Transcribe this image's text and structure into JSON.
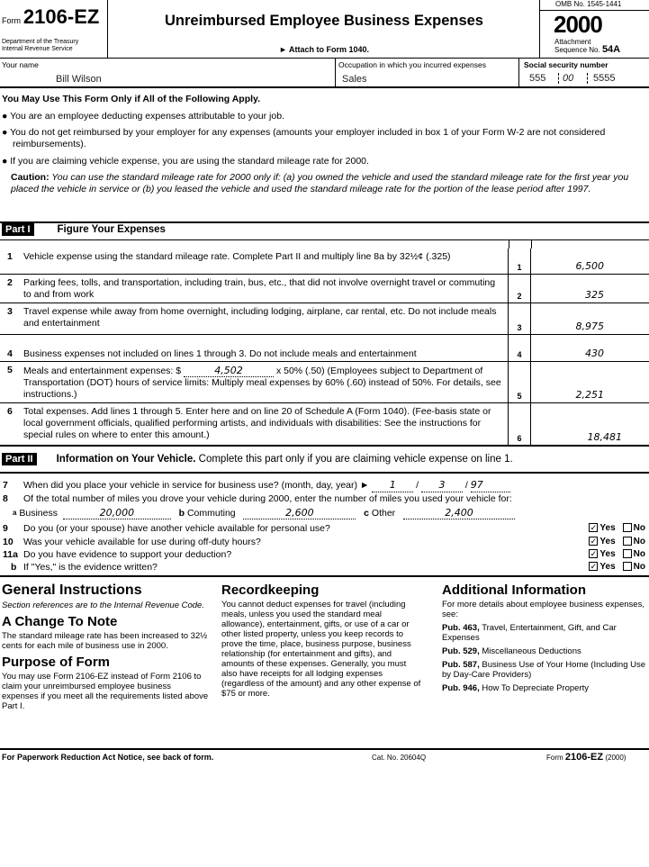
{
  "header": {
    "form_word": "Form",
    "form_number": "2106-EZ",
    "dept1": "Department of the Treasury",
    "dept2": "Internal Revenue Service",
    "title": "Unreimbursed Employee Business Expenses",
    "attach": "► Attach to Form 1040.",
    "omb": "OMB No. 1545-1441",
    "year": "2000",
    "attachment": "Attachment",
    "sequence": "Sequence No.",
    "sequence_no": "54A"
  },
  "taxpayer": {
    "name_label": "Your name",
    "name": "Bill Wilson",
    "occupation_label": "Occupation in which you incurred expenses",
    "occupation": "Sales",
    "ssn_label": "Social security number",
    "ssn": [
      "555",
      "00",
      "5555"
    ]
  },
  "eligibility": {
    "heading": "You May Use This Form Only if All of the Following Apply.",
    "bullets": [
      "You are an employee deducting expenses attributable to your job.",
      "You do not get reimbursed by your employer for any expenses (amounts your employer included in box 1 of your Form W-2 are not considered reimbursements).",
      "If you are claiming vehicle expense, you are using the standard mileage rate for 2000."
    ],
    "caution_label": "Caution:",
    "caution": "You can use the standard mileage rate for 2000 only if: (a) you owned the vehicle and used the standard mileage rate for the first year you placed the vehicle in service or (b) you leased the vehicle and used the standard mileage rate for the portion of the lease period after 1997."
  },
  "part1": {
    "tag": "Part I",
    "title": "Figure Your Expenses",
    "lines": [
      {
        "num": "1",
        "text": "Vehicle expense using the standard mileage rate. Complete Part II and multiply line 8a by 32½¢ (.325)",
        "box": "1",
        "amount": "6,500"
      },
      {
        "num": "2",
        "text": "Parking fees, tolls, and transportation, including train, bus, etc., that did not involve overnight travel or commuting to and from work",
        "box": "2",
        "amount": "325"
      },
      {
        "num": "3",
        "text": "Travel expense while away from home overnight, including lodging, airplane, car rental, etc. Do not include meals and entertainment",
        "box": "3",
        "amount": "8,975"
      },
      {
        "num": "4",
        "text": "Business expenses not included on lines 1 through 3. Do not include meals and entertainment",
        "box": "4",
        "amount": "430"
      },
      {
        "num": "5",
        "text_pre": "Meals and entertainment expenses: $",
        "meals_value": "4,502",
        "text": "x 50% (.50) (Employees subject to Department of Transportation (DOT) hours of service limits: Multiply meal expenses by 60% (.60) instead of 50%. For details, see instructions.)",
        "box": "5",
        "amount": "2,251"
      },
      {
        "num": "6",
        "text": "Total expenses. Add lines 1 through 5. Enter here and on line 20 of Schedule A (Form 1040). (Fee-basis state or local government officials, qualified performing artists, and individuals with disabilities: See the instructions for special rules on where to enter this amount.)",
        "box": "6",
        "amount": "18,481"
      }
    ]
  },
  "part2": {
    "tag": "Part II",
    "title": "Information on Your Vehicle.",
    "subtitle": "Complete this part only if you are claiming vehicle expense on line 1.",
    "q7": {
      "num": "7",
      "text": "When did you place your vehicle in service for business use? (month, day, year) ►",
      "month": "1",
      "day": "3",
      "year": "97"
    },
    "q8": {
      "num": "8",
      "text": "Of the total number of miles you drove your vehicle during 2000, enter the number of miles you used your vehicle for:",
      "a_label": "a",
      "business_label": "Business",
      "business": "20,000",
      "b_label": "b",
      "commuting_label": "Commuting",
      "commuting": "2,600",
      "c_label": "c",
      "other_label": "Other",
      "other": "2,400"
    },
    "yes": "Yes",
    "no": "No",
    "questions": [
      {
        "num": "9",
        "text": "Do you (or your spouse) have another vehicle available for personal use?",
        "answer": "yes"
      },
      {
        "num": "10",
        "text": "Was your vehicle available for use during off-duty hours?",
        "answer": "yes"
      },
      {
        "num": "11a",
        "text": "Do you have evidence to support your deduction?",
        "answer": "yes"
      },
      {
        "num": "b",
        "text": "If \"Yes,\" is the evidence written?",
        "answer": "yes"
      }
    ]
  },
  "instructions": {
    "general_title": "General Instructions",
    "general_note": "Section references are to the Internal Revenue Code.",
    "change_title": "A Change To Note",
    "change_text": "The standard mileage rate has been increased to 32½ cents for each mile of business use in 2000.",
    "purpose_title": "Purpose of Form",
    "purpose_text": "You may use Form 2106-EZ instead of Form 2106 to claim your unreimbursed employee business expenses if you meet all the requirements listed above Part I.",
    "record_title": "Recordkeeping",
    "record_text": "You cannot deduct expenses for travel (including meals, unless you used the standard meal allowance), entertainment, gifts, or use of a car or other listed property, unless you keep records to prove the time, place, business purpose, business relationship (for entertainment and gifts), and amounts of these expenses. Generally, you must also have receipts for all lodging expenses (regardless of the amount) and any other expense of $75 or more.",
    "addl_title": "Additional Information",
    "addl_text": "For more details about employee business expenses, see:",
    "pubs": [
      {
        "pub": "Pub. 463,",
        "desc": "Travel, Entertainment, Gift, and Car Expenses"
      },
      {
        "pub": "Pub. 529,",
        "desc": "Miscellaneous Deductions"
      },
      {
        "pub": "Pub. 587,",
        "desc": "Business Use of Your Home (Including Use by Day-Care Providers)"
      },
      {
        "pub": "Pub. 946,",
        "desc": "How To Depreciate Property"
      }
    ]
  },
  "footer": {
    "paperwork": "For Paperwork Reduction Act Notice, see back of form.",
    "cat": "Cat. No. 20604Q",
    "form_word": "Form",
    "form_number": "2106-EZ",
    "year": "(2000)"
  }
}
